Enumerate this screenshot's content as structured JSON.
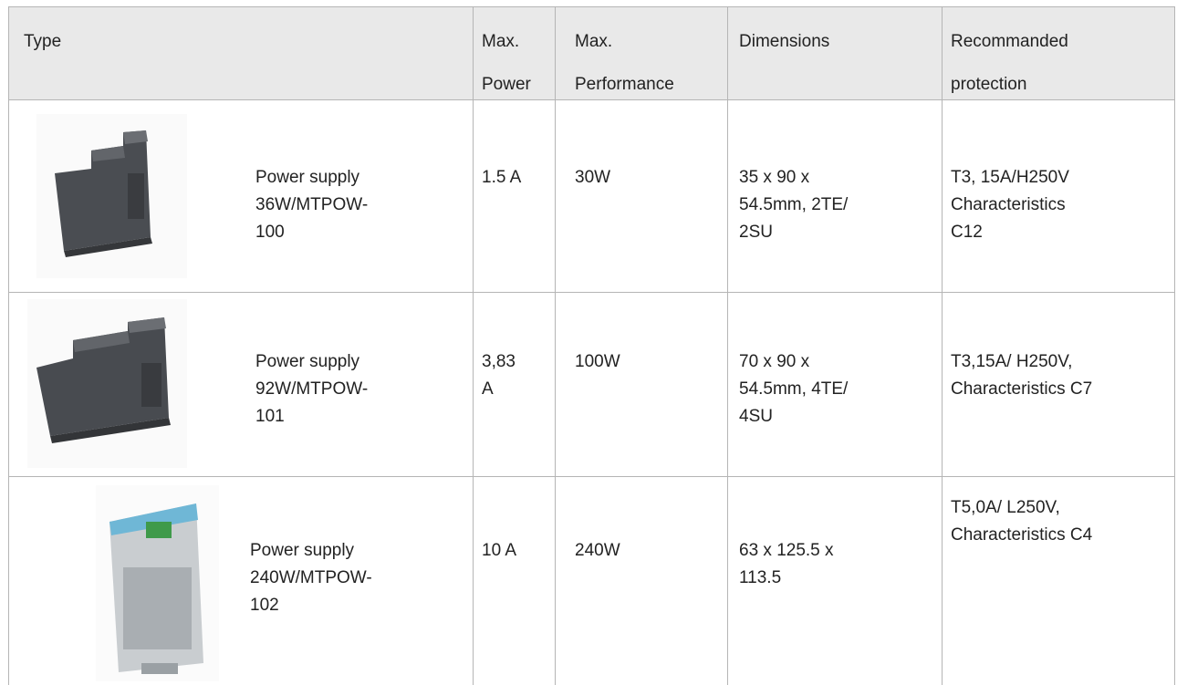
{
  "table": {
    "header": [
      "Type",
      "Max.\nPower",
      "Max.\nPerformance",
      "Dimensions",
      "Recommanded\nprotection"
    ],
    "rows": [
      [
        "Power supply\n36W/MTPOW-\n100",
        "1.5 A",
        "30W",
        "35 x 90 x\n54.5mm, 2TE/\n2SU",
        "T3, 15A/H250V\nCharacteristics\nC12"
      ],
      [
        "Power supply\n92W/MTPOW-\n101",
        "3,83\nA",
        "100W",
        "70 x 90 x\n54.5mm, 4TE/\n4SU",
        "T3,15A/ H250V,\nCharacteristics C7"
      ],
      [
        "Power supply\n240W/MTPOW-\n102",
        "10 A",
        "240W",
        "63 x 125.5 x\n113.5",
        "T5,0A/ L250V,\nCharacteristics C4"
      ]
    ]
  }
}
